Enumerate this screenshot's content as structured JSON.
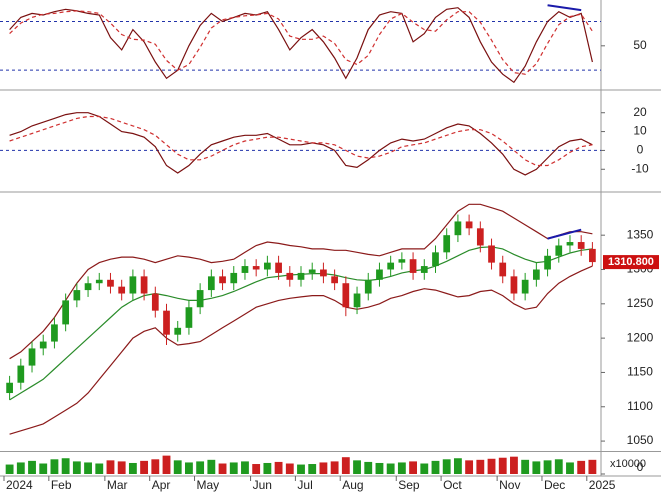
{
  "chart_data": [
    {
      "type": "line",
      "ylim": [
        -2,
        104
      ],
      "yticks": [
        50
      ],
      "levels": [
        80,
        20
      ],
      "level_color": "#2233aa",
      "series": [
        {
          "color": "#7a1010",
          "style": "solid",
          "values": [
            70,
            85,
            90,
            88,
            92,
            95,
            93,
            90,
            88,
            60,
            45,
            70,
            55,
            30,
            10,
            20,
            50,
            75,
            90,
            80,
            85,
            90,
            88,
            92,
            70,
            45,
            60,
            70,
            55,
            35,
            10,
            35,
            70,
            88,
            92,
            90,
            55,
            65,
            85,
            95,
            97,
            85,
            55,
            30,
            15,
            5,
            25,
            55,
            80,
            92,
            85,
            90,
            30
          ]
        },
        {
          "color": "#d03030",
          "style": "dashed",
          "values": [
            65,
            78,
            85,
            89,
            90,
            92,
            93,
            92,
            90,
            78,
            64,
            58,
            57,
            52,
            32,
            20,
            27,
            48,
            72,
            82,
            85,
            87,
            88,
            90,
            83,
            62,
            58,
            58,
            62,
            53,
            33,
            27,
            38,
            64,
            83,
            90,
            79,
            70,
            68,
            82,
            92,
            92,
            79,
            57,
            33,
            17,
            15,
            28,
            53,
            76,
            86,
            89,
            68
          ]
        }
      ],
      "trendlines": [
        {
          "x": [
            48,
            51
          ],
          "y": [
            100,
            94
          ],
          "color": "#1a1aaa"
        }
      ]
    },
    {
      "type": "line",
      "ylim": [
        -21,
        31
      ],
      "yticks": [
        20,
        10,
        0,
        -10
      ],
      "levels": [
        0
      ],
      "level_color": "#2233aa",
      "series": [
        {
          "color": "#7a1010",
          "style": "solid",
          "values": [
            8,
            10,
            13,
            15,
            17,
            19,
            20,
            20,
            18,
            14,
            10,
            9,
            7,
            2,
            -8,
            -12,
            -8,
            -2,
            3,
            5,
            7,
            8,
            8,
            9,
            6,
            3,
            3,
            4,
            3,
            0,
            -8,
            -9,
            -5,
            0,
            4,
            6,
            5,
            6,
            9,
            12,
            14,
            13,
            9,
            4,
            -2,
            -10,
            -13,
            -10,
            -4,
            2,
            5,
            6,
            3
          ]
        },
        {
          "color": "#d03030",
          "style": "dashed",
          "values": [
            5,
            7,
            9,
            11,
            13,
            15,
            17,
            18,
            18,
            17,
            15,
            13,
            11,
            8,
            3,
            -2,
            -5,
            -5,
            -3,
            0,
            3,
            5,
            6,
            7,
            7,
            6,
            5,
            4,
            4,
            3,
            0,
            -3,
            -4,
            -3,
            -1,
            2,
            3,
            4,
            6,
            8,
            10,
            11,
            11,
            9,
            5,
            0,
            -5,
            -8,
            -8,
            -5,
            -1,
            2,
            3
          ]
        }
      ]
    },
    {
      "type": "candlestick",
      "ylim": [
        1037,
        1410
      ],
      "yticks": [
        1050,
        1100,
        1150,
        1200,
        1250,
        1300,
        1350
      ],
      "up_color": "#1f9a1f",
      "down_color": "#cc2020",
      "open": [
        1120,
        1135,
        1160,
        1185,
        1195,
        1220,
        1255,
        1270,
        1280,
        1285,
        1275,
        1265,
        1290,
        1265,
        1240,
        1205,
        1215,
        1245,
        1270,
        1290,
        1280,
        1295,
        1305,
        1300,
        1310,
        1295,
        1285,
        1295,
        1300,
        1290,
        1280,
        1245,
        1265,
        1285,
        1300,
        1310,
        1315,
        1295,
        1305,
        1325,
        1350,
        1370,
        1360,
        1335,
        1310,
        1290,
        1265,
        1285,
        1300,
        1320,
        1335,
        1340,
        1330
      ],
      "high": [
        1145,
        1170,
        1195,
        1205,
        1230,
        1265,
        1280,
        1290,
        1295,
        1295,
        1285,
        1300,
        1300,
        1275,
        1250,
        1225,
        1255,
        1280,
        1300,
        1300,
        1305,
        1315,
        1315,
        1320,
        1320,
        1305,
        1305,
        1310,
        1310,
        1300,
        1290,
        1275,
        1295,
        1310,
        1320,
        1325,
        1325,
        1315,
        1335,
        1360,
        1380,
        1380,
        1370,
        1345,
        1320,
        1300,
        1295,
        1310,
        1330,
        1345,
        1350,
        1350,
        1340
      ],
      "low": [
        1110,
        1125,
        1150,
        1175,
        1185,
        1210,
        1245,
        1260,
        1270,
        1265,
        1255,
        1255,
        1255,
        1230,
        1190,
        1195,
        1205,
        1235,
        1260,
        1270,
        1270,
        1285,
        1290,
        1290,
        1285,
        1275,
        1275,
        1285,
        1280,
        1270,
        1232,
        1235,
        1255,
        1275,
        1290,
        1300,
        1285,
        1285,
        1295,
        1315,
        1340,
        1350,
        1325,
        1300,
        1280,
        1255,
        1255,
        1275,
        1290,
        1310,
        1325,
        1320,
        1305
      ],
      "close": [
        1135,
        1160,
        1185,
        1195,
        1220,
        1255,
        1270,
        1280,
        1285,
        1275,
        1265,
        1290,
        1265,
        1240,
        1205,
        1215,
        1245,
        1270,
        1290,
        1280,
        1295,
        1305,
        1300,
        1310,
        1295,
        1285,
        1295,
        1300,
        1290,
        1280,
        1245,
        1265,
        1285,
        1300,
        1310,
        1315,
        1295,
        1305,
        1325,
        1350,
        1370,
        1360,
        1335,
        1310,
        1290,
        1265,
        1285,
        1300,
        1320,
        1335,
        1340,
        1330,
        1310.8
      ],
      "series": [
        {
          "color": "#8b1a1a",
          "values": [
            1170,
            1180,
            1195,
            1210,
            1230,
            1255,
            1280,
            1300,
            1310,
            1315,
            1318,
            1318,
            1315,
            1310,
            1315,
            1320,
            1318,
            1315,
            1310,
            1312,
            1315,
            1325,
            1335,
            1340,
            1338,
            1335,
            1333,
            1330,
            1330,
            1328,
            1328,
            1325,
            1322,
            1320,
            1325,
            1330,
            1330,
            1330,
            1345,
            1365,
            1385,
            1395,
            1395,
            1390,
            1385,
            1375,
            1365,
            1355,
            1345,
            1350,
            1355,
            1355,
            1352
          ]
        },
        {
          "color": "#2a8c2a",
          "values": [
            1110,
            1120,
            1130,
            1140,
            1155,
            1170,
            1185,
            1200,
            1215,
            1230,
            1245,
            1255,
            1262,
            1265,
            1262,
            1258,
            1255,
            1255,
            1258,
            1262,
            1268,
            1275,
            1282,
            1288,
            1290,
            1292,
            1293,
            1294,
            1294,
            1292,
            1288,
            1285,
            1284,
            1286,
            1290,
            1295,
            1298,
            1300,
            1305,
            1312,
            1320,
            1328,
            1332,
            1333,
            1330,
            1322,
            1315,
            1310,
            1312,
            1318,
            1324,
            1328,
            1330
          ]
        },
        {
          "color": "#8b1a1a",
          "values": [
            1060,
            1065,
            1070,
            1075,
            1085,
            1095,
            1105,
            1120,
            1140,
            1160,
            1180,
            1200,
            1210,
            1215,
            1200,
            1190,
            1192,
            1195,
            1205,
            1215,
            1225,
            1235,
            1245,
            1250,
            1255,
            1258,
            1260,
            1262,
            1262,
            1255,
            1245,
            1242,
            1245,
            1250,
            1258,
            1262,
            1268,
            1272,
            1270,
            1265,
            1260,
            1262,
            1268,
            1270,
            1262,
            1250,
            1242,
            1245,
            1265,
            1280,
            1290,
            1298,
            1305
          ]
        }
      ],
      "trendlines": [
        {
          "x": [
            48,
            51
          ],
          "y": [
            1345,
            1358
          ],
          "color": "#1a1aaa"
        }
      ],
      "last_price": 1310.8,
      "last_price_label": "1310.800",
      "last_price_color": "#cc1010"
    },
    {
      "type": "bar",
      "ylim": [
        0,
        40
      ],
      "yticks": [
        0
      ],
      "unit_label": "x10000",
      "values": [
        18,
        22,
        25,
        20,
        28,
        30,
        24,
        22,
        20,
        26,
        24,
        21,
        25,
        28,
        35,
        26,
        22,
        24,
        27,
        20,
        22,
        24,
        19,
        21,
        23,
        20,
        18,
        19,
        22,
        24,
        32,
        26,
        23,
        21,
        20,
        22,
        24,
        20,
        25,
        28,
        30,
        26,
        27,
        29,
        31,
        33,
        27,
        24,
        26,
        28,
        22,
        25,
        27
      ],
      "categories": [
        "2024",
        null,
        null,
        null,
        "Feb",
        null,
        null,
        null,
        null,
        "Mar",
        null,
        null,
        null,
        "Apr",
        null,
        null,
        null,
        "May",
        null,
        null,
        null,
        null,
        "Jun",
        null,
        null,
        null,
        "Jul",
        null,
        null,
        null,
        "Aug",
        null,
        null,
        null,
        null,
        "Sep",
        null,
        null,
        null,
        "Oct",
        null,
        null,
        null,
        null,
        "Nov",
        null,
        null,
        null,
        "Dec",
        null,
        null,
        null,
        "2025"
      ]
    }
  ]
}
